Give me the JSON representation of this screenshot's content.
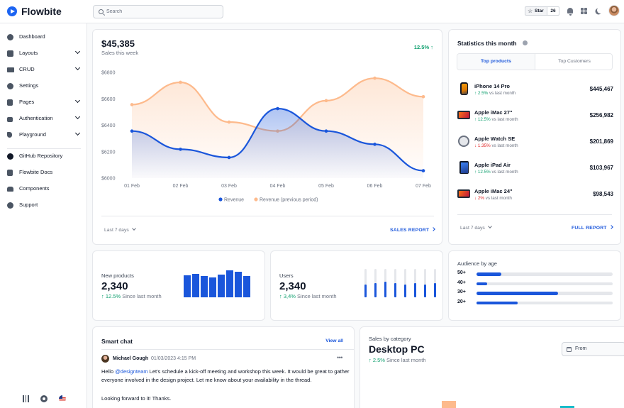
{
  "app": {
    "brand": "Flowbite"
  },
  "header": {
    "search_placeholder": "Search",
    "star_label": "Star",
    "star_count": "26",
    "icons": [
      "bell-icon",
      "apps-icon",
      "moon-icon",
      "avatar"
    ]
  },
  "sidebar": {
    "items": [
      {
        "label": "Dashboard",
        "icon": "chart-pie-icon",
        "expandable": false
      },
      {
        "label": "Layouts",
        "icon": "layout-icon",
        "expandable": true
      },
      {
        "label": "CRUD",
        "icon": "table-icon",
        "expandable": true
      },
      {
        "label": "Settings",
        "icon": "gear-icon",
        "expandable": false
      },
      {
        "label": "Pages",
        "icon": "document-icon",
        "expandable": true
      },
      {
        "label": "Authentication",
        "icon": "lock-icon",
        "expandable": true
      },
      {
        "label": "Playground",
        "icon": "cursor-icon",
        "expandable": true
      }
    ],
    "secondary": [
      {
        "label": "GitHub Repository",
        "icon": "github-icon"
      },
      {
        "label": "Flowbite Docs",
        "icon": "book-icon"
      },
      {
        "label": "Components",
        "icon": "stack-icon"
      },
      {
        "label": "Support",
        "icon": "lifebuoy-icon"
      }
    ],
    "bottom_icons": [
      "sliders-icon",
      "gear-icon",
      "flag-us-icon"
    ]
  },
  "sales": {
    "total": "$45,385",
    "subtitle": "Sales this week",
    "change": "12.5%",
    "period": "Last 7 days",
    "report_link": "SALES REPORT"
  },
  "chart_data": {
    "type": "area",
    "categories": [
      "01 Feb",
      "02 Feb",
      "03 Feb",
      "04 Feb",
      "05 Feb",
      "06 Feb",
      "07 Feb"
    ],
    "series": [
      {
        "name": "Revenue",
        "color": "#1a56db",
        "values": [
          6356,
          6218,
          6156,
          6526,
          6356,
          6256,
          6056
        ]
      },
      {
        "name": "Revenue (previous period)",
        "color": "#fdba8c",
        "values": [
          6556,
          6725,
          6424,
          6356,
          6586,
          6756,
          6616
        ]
      }
    ],
    "y_ticks": [
      "$6800",
      "$6600",
      "$6400",
      "$6200",
      "$6000"
    ],
    "ylim": [
      6000,
      6800
    ],
    "legend": "bottom"
  },
  "statistics": {
    "title": "Statistics this month",
    "tabs": [
      "Top products",
      "Top Customers"
    ],
    "products": [
      {
        "name": "iPhone 14 Pro",
        "change": "2.5%",
        "direction": "up",
        "suffix": "vs last month",
        "value": "$445,467"
      },
      {
        "name": "Apple iMac 27\"",
        "change": "12.5%",
        "direction": "up",
        "suffix": "vs last month",
        "value": "$256,982"
      },
      {
        "name": "Apple Watch SE",
        "change": "1.35%",
        "direction": "down",
        "suffix": "vs last month",
        "value": "$201,869"
      },
      {
        "name": "Apple iPad Air",
        "change": "12.5%",
        "direction": "up",
        "suffix": "vs last month",
        "value": "$103,967"
      },
      {
        "name": "Apple iMac 24\"",
        "change": "2%",
        "direction": "down",
        "suffix": "vs last month",
        "value": "$98,543"
      }
    ],
    "period": "Last 7 days",
    "report_link": "FULL REPORT"
  },
  "new_products": {
    "label": "New products",
    "value": "2,340",
    "change": "12.5%",
    "suffix": "Since last month",
    "bar_values": [
      0.82,
      0.86,
      0.8,
      0.73,
      0.84,
      1.0,
      0.94,
      0.78
    ]
  },
  "users": {
    "label": "Users",
    "value": "2,340",
    "change": "3,4%",
    "suffix": "Since last month",
    "bar_values": [
      0.45,
      0.5,
      0.55,
      0.5,
      0.45,
      0.5,
      0.45,
      0.5
    ]
  },
  "audience": {
    "title": "Audience by age",
    "rows": [
      {
        "label": "50+",
        "fraction": 0.18
      },
      {
        "label": "40+",
        "fraction": 0.08
      },
      {
        "label": "30+",
        "fraction": 0.6
      },
      {
        "label": "20+",
        "fraction": 0.3
      }
    ]
  },
  "chat": {
    "title": "Smart chat",
    "view_all": "View all",
    "author": "Michael Gough",
    "time": "01/03/2023 4:15 PM",
    "mention": "@designteam",
    "message": " Let's schedule a kick-off meeting and workshop this week. It would be great to gather everyone involved in the design project. Let me know about your availability in the thread.",
    "greeting": "Hello ",
    "message2": "Looking forward to it! Thanks."
  },
  "category": {
    "label": "Sales by category",
    "value": "Desktop PC",
    "change": "2.5%",
    "suffix": "Since last month",
    "date_placeholder": "From"
  }
}
